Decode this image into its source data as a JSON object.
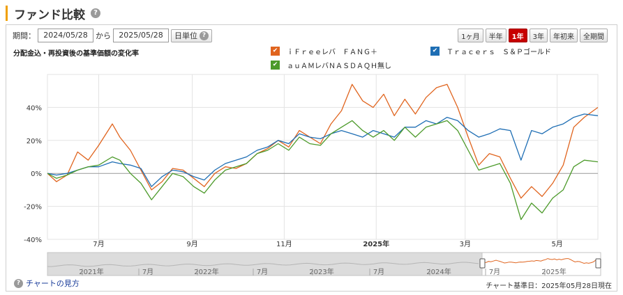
{
  "page": {
    "title": "ファンド比較"
  },
  "controls": {
    "period_label": "期間：",
    "date_from": "2024/05/28",
    "sep": "から",
    "date_to": "2025/05/28",
    "unit_label": "日単位",
    "periods": [
      "1ヶ月",
      "半年",
      "1年",
      "3年",
      "年初来",
      "全期間"
    ],
    "active_period": "1年"
  },
  "footer": {
    "help_link": "チャートの見方",
    "base_date": "チャート基準日：2025年05月28日現在"
  },
  "chart_data": {
    "type": "line",
    "title": "分配金込・再投資後の基準価額の変化率",
    "x_ticks": [
      {
        "label": "7月",
        "date": "2024-07-01",
        "bold": false
      },
      {
        "label": "9月",
        "date": "2024-09-01",
        "bold": false
      },
      {
        "label": "11月",
        "date": "2024-11-01",
        "bold": false
      },
      {
        "label": "2025年",
        "date": "2025-01-01",
        "bold": true
      },
      {
        "label": "3月",
        "date": "2025-03-01",
        "bold": false
      },
      {
        "label": "5月",
        "date": "2025-05-01",
        "bold": false
      }
    ],
    "y_ticks": [
      {
        "label": "40%",
        "value": 40
      },
      {
        "label": "20%",
        "value": 20
      },
      {
        "label": "0%",
        "value": 0
      },
      {
        "label": "-20%",
        "value": -20
      },
      {
        "label": "-40%",
        "value": -40
      }
    ],
    "xlim": [
      "2024-05-28",
      "2025-05-28"
    ],
    "ylim": [
      -40,
      60
    ],
    "grid": true,
    "legend_position": "top",
    "series": [
      {
        "name": "ｉＦｒｅｅレバ　ＦＡＮＧ＋",
        "color": "#e0641e",
        "points": [
          [
            "2024-05-28",
            0
          ],
          [
            "2024-06-03",
            -5
          ],
          [
            "2024-06-10",
            -1
          ],
          [
            "2024-06-17",
            13
          ],
          [
            "2024-06-24",
            8
          ],
          [
            "2024-07-01",
            17
          ],
          [
            "2024-07-10",
            30
          ],
          [
            "2024-07-15",
            22
          ],
          [
            "2024-07-22",
            14
          ],
          [
            "2024-07-29",
            2
          ],
          [
            "2024-08-05",
            -10
          ],
          [
            "2024-08-12",
            -5
          ],
          [
            "2024-08-19",
            3
          ],
          [
            "2024-08-26",
            2
          ],
          [
            "2024-09-02",
            -3
          ],
          [
            "2024-09-09",
            -8
          ],
          [
            "2024-09-16",
            0
          ],
          [
            "2024-09-23",
            4
          ],
          [
            "2024-09-30",
            3
          ],
          [
            "2024-10-07",
            6
          ],
          [
            "2024-10-14",
            12
          ],
          [
            "2024-10-21",
            15
          ],
          [
            "2024-10-28",
            20
          ],
          [
            "2024-11-04",
            16
          ],
          [
            "2024-11-11",
            26
          ],
          [
            "2024-11-18",
            22
          ],
          [
            "2024-11-25",
            18
          ],
          [
            "2024-12-02",
            30
          ],
          [
            "2024-12-09",
            38
          ],
          [
            "2024-12-16",
            54
          ],
          [
            "2024-12-23",
            44
          ],
          [
            "2024-12-30",
            40
          ],
          [
            "2025-01-06",
            48
          ],
          [
            "2025-01-13",
            35
          ],
          [
            "2025-01-20",
            45
          ],
          [
            "2025-01-27",
            36
          ],
          [
            "2025-02-03",
            46
          ],
          [
            "2025-02-10",
            52
          ],
          [
            "2025-02-17",
            54
          ],
          [
            "2025-02-24",
            40
          ],
          [
            "2025-03-03",
            22
          ],
          [
            "2025-03-10",
            5
          ],
          [
            "2025-03-17",
            12
          ],
          [
            "2025-03-24",
            10
          ],
          [
            "2025-03-31",
            -3
          ],
          [
            "2025-04-07",
            -15
          ],
          [
            "2025-04-14",
            -8
          ],
          [
            "2025-04-21",
            -14
          ],
          [
            "2025-04-28",
            -6
          ],
          [
            "2025-05-05",
            5
          ],
          [
            "2025-05-12",
            28
          ],
          [
            "2025-05-19",
            34
          ],
          [
            "2025-05-28",
            40
          ]
        ]
      },
      {
        "name": "Ｔｒａｃｅｒｓ　Ｓ＆Ｐゴールド",
        "color": "#1e6eb4",
        "points": [
          [
            "2024-05-28",
            0
          ],
          [
            "2024-06-03",
            -1
          ],
          [
            "2024-06-10",
            0
          ],
          [
            "2024-06-17",
            2
          ],
          [
            "2024-06-24",
            4
          ],
          [
            "2024-07-01",
            4
          ],
          [
            "2024-07-10",
            7
          ],
          [
            "2024-07-15",
            6
          ],
          [
            "2024-07-22",
            5
          ],
          [
            "2024-07-29",
            3
          ],
          [
            "2024-08-05",
            -8
          ],
          [
            "2024-08-12",
            -2
          ],
          [
            "2024-08-19",
            2
          ],
          [
            "2024-08-26",
            1
          ],
          [
            "2024-09-02",
            -2
          ],
          [
            "2024-09-09",
            -4
          ],
          [
            "2024-09-16",
            2
          ],
          [
            "2024-09-23",
            6
          ],
          [
            "2024-09-30",
            8
          ],
          [
            "2024-10-07",
            10
          ],
          [
            "2024-10-14",
            14
          ],
          [
            "2024-10-21",
            16
          ],
          [
            "2024-10-28",
            20
          ],
          [
            "2024-11-04",
            18
          ],
          [
            "2024-11-11",
            24
          ],
          [
            "2024-11-18",
            22
          ],
          [
            "2024-11-25",
            21
          ],
          [
            "2024-12-02",
            24
          ],
          [
            "2024-12-09",
            26
          ],
          [
            "2024-12-16",
            24
          ],
          [
            "2024-12-23",
            22
          ],
          [
            "2024-12-30",
            26
          ],
          [
            "2025-01-06",
            24
          ],
          [
            "2025-01-13",
            22
          ],
          [
            "2025-01-20",
            28
          ],
          [
            "2025-01-27",
            28
          ],
          [
            "2025-02-03",
            32
          ],
          [
            "2025-02-10",
            30
          ],
          [
            "2025-02-17",
            34
          ],
          [
            "2025-02-24",
            32
          ],
          [
            "2025-03-03",
            26
          ],
          [
            "2025-03-10",
            22
          ],
          [
            "2025-03-17",
            24
          ],
          [
            "2025-03-24",
            27
          ],
          [
            "2025-03-31",
            26
          ],
          [
            "2025-04-07",
            8
          ],
          [
            "2025-04-14",
            26
          ],
          [
            "2025-04-21",
            24
          ],
          [
            "2025-04-28",
            28
          ],
          [
            "2025-05-05",
            30
          ],
          [
            "2025-05-12",
            34
          ],
          [
            "2025-05-19",
            36
          ],
          [
            "2025-05-28",
            35
          ]
        ]
      },
      {
        "name": "ａｕＡＭレバＮＡＳＤＡＱＨ無し",
        "color": "#4c9a2a",
        "points": [
          [
            "2024-05-28",
            0
          ],
          [
            "2024-06-03",
            -3
          ],
          [
            "2024-06-10",
            -1
          ],
          [
            "2024-06-17",
            2
          ],
          [
            "2024-06-24",
            4
          ],
          [
            "2024-07-01",
            5
          ],
          [
            "2024-07-10",
            10
          ],
          [
            "2024-07-15",
            8
          ],
          [
            "2024-07-22",
            0
          ],
          [
            "2024-07-29",
            -6
          ],
          [
            "2024-08-05",
            -16
          ],
          [
            "2024-08-12",
            -8
          ],
          [
            "2024-08-19",
            0
          ],
          [
            "2024-08-26",
            -2
          ],
          [
            "2024-09-02",
            -8
          ],
          [
            "2024-09-09",
            -12
          ],
          [
            "2024-09-16",
            -4
          ],
          [
            "2024-09-23",
            2
          ],
          [
            "2024-09-30",
            4
          ],
          [
            "2024-10-07",
            6
          ],
          [
            "2024-10-14",
            12
          ],
          [
            "2024-10-21",
            14
          ],
          [
            "2024-10-28",
            18
          ],
          [
            "2024-11-04",
            14
          ],
          [
            "2024-11-11",
            22
          ],
          [
            "2024-11-18",
            18
          ],
          [
            "2024-11-25",
            17
          ],
          [
            "2024-12-02",
            24
          ],
          [
            "2024-12-09",
            28
          ],
          [
            "2024-12-16",
            32
          ],
          [
            "2024-12-23",
            26
          ],
          [
            "2024-12-30",
            22
          ],
          [
            "2025-01-06",
            26
          ],
          [
            "2025-01-13",
            20
          ],
          [
            "2025-01-20",
            28
          ],
          [
            "2025-01-27",
            22
          ],
          [
            "2025-02-03",
            28
          ],
          [
            "2025-02-10",
            30
          ],
          [
            "2025-02-17",
            32
          ],
          [
            "2025-02-24",
            26
          ],
          [
            "2025-03-03",
            14
          ],
          [
            "2025-03-10",
            2
          ],
          [
            "2025-03-17",
            4
          ],
          [
            "2025-03-24",
            6
          ],
          [
            "2025-03-31",
            -6
          ],
          [
            "2025-04-07",
            -28
          ],
          [
            "2025-04-14",
            -18
          ],
          [
            "2025-04-21",
            -24
          ],
          [
            "2025-04-28",
            -15
          ],
          [
            "2025-05-05",
            -10
          ],
          [
            "2025-05-12",
            4
          ],
          [
            "2025-05-19",
            8
          ],
          [
            "2025-05-28",
            7
          ]
        ]
      }
    ],
    "navigator": {
      "x_ticks": [
        "2021年",
        "7月",
        "2022年",
        "7月",
        "2023年",
        "7月",
        "2024年",
        "7月",
        "2025年"
      ],
      "range": [
        "2024-05-28",
        "2025-05-28"
      ]
    }
  }
}
